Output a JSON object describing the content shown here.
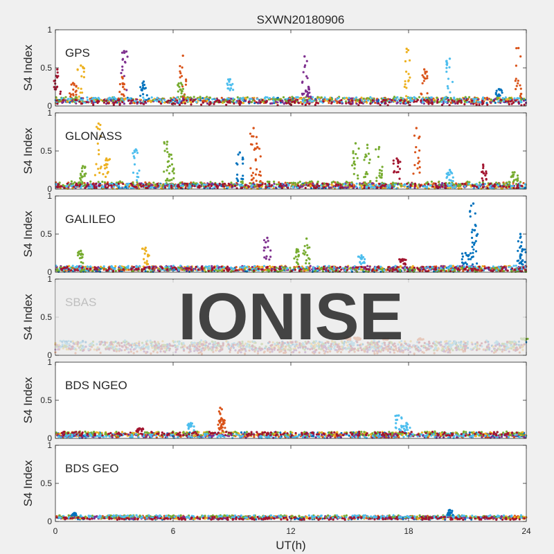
{
  "title": "SXWN20180906",
  "watermark": "IONISE",
  "colors": {
    "figure_bg": "#f0f0f0",
    "axes_bg": "#ffffff",
    "axis_line": "#262626",
    "watermark_band": "#e9e9e9",
    "watermark_text": "#d6d6d6",
    "series": [
      "#0072bd",
      "#d95319",
      "#edb120",
      "#7e2f8e",
      "#77ac30",
      "#4dbeee",
      "#a2142f"
    ]
  },
  "chart_data": [
    {
      "type": "scatter",
      "label": "GPS",
      "xlabel": "",
      "ylabel": "S4 Index",
      "xlim": [
        0,
        24
      ],
      "ylim": [
        0,
        1
      ],
      "xticks": [
        0,
        6,
        12,
        18,
        24
      ],
      "yticks": [
        0,
        0.5,
        1
      ],
      "xticklabels": [],
      "yticklabels": [
        "0",
        "0.5",
        "1"
      ],
      "baseline": [
        0.04,
        0.12
      ],
      "peaks": [
        {
          "x": 0.1,
          "y": 0.48,
          "color": 6
        },
        {
          "x": 1.3,
          "y": 0.53,
          "color": 2
        },
        {
          "x": 0.9,
          "y": 0.3,
          "color": 1
        },
        {
          "x": 3.5,
          "y": 0.72,
          "color": 3
        },
        {
          "x": 3.4,
          "y": 0.38,
          "color": 1
        },
        {
          "x": 4.5,
          "y": 0.32,
          "color": 0
        },
        {
          "x": 6.5,
          "y": 0.66,
          "color": 1
        },
        {
          "x": 6.4,
          "y": 0.3,
          "color": 4
        },
        {
          "x": 8.9,
          "y": 0.35,
          "color": 5
        },
        {
          "x": 12.7,
          "y": 0.65,
          "color": 3
        },
        {
          "x": 12.9,
          "y": 0.25,
          "color": 3
        },
        {
          "x": 17.9,
          "y": 0.75,
          "color": 2
        },
        {
          "x": 18.8,
          "y": 0.48,
          "color": 1
        },
        {
          "x": 20.1,
          "y": 0.62,
          "color": 5
        },
        {
          "x": 23.6,
          "y": 0.76,
          "color": 1
        },
        {
          "x": 22.6,
          "y": 0.22,
          "color": 0
        }
      ]
    },
    {
      "type": "scatter",
      "label": "GLONASS",
      "xlabel": "",
      "ylabel": "S4 Index",
      "xlim": [
        0,
        24
      ],
      "ylim": [
        0,
        1
      ],
      "xticks": [
        0,
        6,
        12,
        18,
        24
      ],
      "yticks": [
        0,
        0.5,
        1
      ],
      "xticklabels": [],
      "yticklabels": [
        "0",
        "0.5",
        "1"
      ],
      "baseline": [
        0.03,
        0.1
      ],
      "peaks": [
        {
          "x": 2.2,
          "y": 0.86,
          "color": 2
        },
        {
          "x": 2.6,
          "y": 0.4,
          "color": 2
        },
        {
          "x": 1.4,
          "y": 0.3,
          "color": 4
        },
        {
          "x": 4.1,
          "y": 0.52,
          "color": 5
        },
        {
          "x": 5.7,
          "y": 0.62,
          "color": 4
        },
        {
          "x": 5.9,
          "y": 0.45,
          "color": 4
        },
        {
          "x": 9.4,
          "y": 0.48,
          "color": 0
        },
        {
          "x": 10.1,
          "y": 0.8,
          "color": 1
        },
        {
          "x": 10.3,
          "y": 0.55,
          "color": 1
        },
        {
          "x": 15.3,
          "y": 0.6,
          "color": 4
        },
        {
          "x": 15.9,
          "y": 0.58,
          "color": 4
        },
        {
          "x": 16.5,
          "y": 0.55,
          "color": 4
        },
        {
          "x": 18.4,
          "y": 0.8,
          "color": 1
        },
        {
          "x": 17.4,
          "y": 0.4,
          "color": 6
        },
        {
          "x": 20.1,
          "y": 0.25,
          "color": 5
        },
        {
          "x": 21.8,
          "y": 0.32,
          "color": 6
        },
        {
          "x": 23.4,
          "y": 0.22,
          "color": 4
        }
      ]
    },
    {
      "type": "scatter",
      "label": "GALILEO",
      "xlabel": "",
      "ylabel": "S4 Index",
      "xlim": [
        0,
        24
      ],
      "ylim": [
        0,
        1
      ],
      "xticks": [
        0,
        6,
        12,
        18,
        24
      ],
      "yticks": [
        0,
        0.5,
        1
      ],
      "xticklabels": [],
      "yticklabels": [
        "0",
        "0.5",
        "1"
      ],
      "baseline": [
        0.03,
        0.1
      ],
      "peaks": [
        {
          "x": 1.3,
          "y": 0.28,
          "color": 4
        },
        {
          "x": 4.6,
          "y": 0.32,
          "color": 2
        },
        {
          "x": 10.8,
          "y": 0.45,
          "color": 3
        },
        {
          "x": 12.8,
          "y": 0.44,
          "color": 4
        },
        {
          "x": 12.3,
          "y": 0.3,
          "color": 4
        },
        {
          "x": 15.6,
          "y": 0.22,
          "color": 5
        },
        {
          "x": 21.3,
          "y": 0.9,
          "color": 0
        },
        {
          "x": 21.4,
          "y": 0.62,
          "color": 0
        },
        {
          "x": 20.9,
          "y": 0.25,
          "color": 0
        },
        {
          "x": 23.7,
          "y": 0.5,
          "color": 0
        },
        {
          "x": 23.8,
          "y": 0.3,
          "color": 0
        },
        {
          "x": 17.7,
          "y": 0.17,
          "color": 6
        }
      ]
    },
    {
      "type": "scatter",
      "label": "SBAS",
      "xlabel": "",
      "ylabel": "S4 Index",
      "xlim": [
        0,
        24
      ],
      "ylim": [
        0,
        1
      ],
      "xticks": [
        0,
        6,
        12,
        18,
        24
      ],
      "yticks": [
        0,
        0.5,
        1
      ],
      "xticklabels": [],
      "yticklabels": [
        "0",
        "0.5",
        "1"
      ],
      "baseline": [
        0.07,
        0.2
      ],
      "peaks": [
        {
          "x": 14.9,
          "y": 0.24,
          "color": 1
        },
        {
          "x": 15.4,
          "y": 0.23,
          "color": 1
        },
        {
          "x": 16.8,
          "y": 0.22,
          "color": 1
        },
        {
          "x": 18.6,
          "y": 0.22,
          "color": 1
        },
        {
          "x": 23.9,
          "y": 0.22,
          "color": 4
        }
      ]
    },
    {
      "type": "scatter",
      "label": "BDS NGEO",
      "xlabel": "",
      "ylabel": "S4 Index",
      "xlim": [
        0,
        24
      ],
      "ylim": [
        0,
        1
      ],
      "xticks": [
        0,
        6,
        12,
        18,
        24
      ],
      "yticks": [
        0,
        0.5,
        1
      ],
      "xticklabels": [],
      "yticklabels": [
        "0",
        "0.5",
        "1"
      ],
      "baseline": [
        0.03,
        0.09
      ],
      "peaks": [
        {
          "x": 8.4,
          "y": 0.4,
          "color": 1
        },
        {
          "x": 8.5,
          "y": 0.25,
          "color": 1
        },
        {
          "x": 6.9,
          "y": 0.2,
          "color": 5
        },
        {
          "x": 17.5,
          "y": 0.3,
          "color": 5
        },
        {
          "x": 17.9,
          "y": 0.2,
          "color": 5
        },
        {
          "x": 4.3,
          "y": 0.13,
          "color": 6
        }
      ]
    },
    {
      "type": "scatter",
      "label": "BDS GEO",
      "xlabel": "UT(h)",
      "ylabel": "S4 Index",
      "xlim": [
        0,
        24
      ],
      "ylim": [
        0,
        1
      ],
      "xticks": [
        0,
        6,
        12,
        18,
        24
      ],
      "yticks": [
        0,
        0.5,
        1
      ],
      "xticklabels": [
        "0",
        "6",
        "12",
        "18",
        "24"
      ],
      "yticklabels": [
        "0",
        "0.5",
        "1"
      ],
      "baseline": [
        0.04,
        0.08
      ],
      "peaks": [
        {
          "x": 20.1,
          "y": 0.15,
          "color": 0
        },
        {
          "x": 1.0,
          "y": 0.11,
          "color": 0
        }
      ]
    }
  ]
}
